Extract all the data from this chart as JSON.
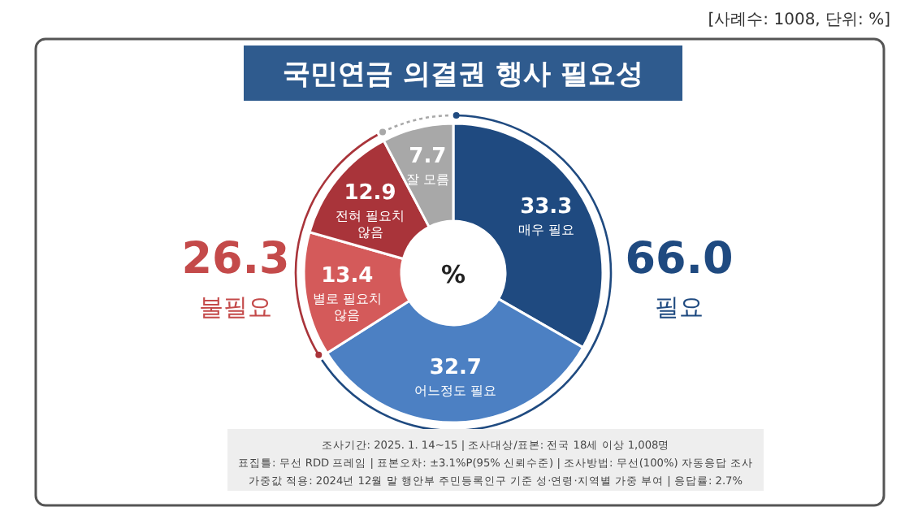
{
  "chart_data": {
    "type": "donut",
    "title": "국민연금 의결권 행사 필요성",
    "categories": [
      "매우 필요",
      "어느정도 필요",
      "별로 필요치 않음",
      "전혀 필요치 않음",
      "잘 모름"
    ],
    "values": [
      33.3,
      32.7,
      13.4,
      12.9,
      7.7
    ],
    "colors": [
      "#1f4a80",
      "#4c80c3",
      "#d45a5a",
      "#a9343a",
      "#a8a8a8"
    ],
    "data_labels": true,
    "annotations": [
      "[사례수: 1008, 단위: %]",
      "%",
      "26.3",
      "불필요",
      "66.0",
      "필요",
      "조사기간: 2025. 1. 14~15 | 조사대상/표본: 전국 18세 이상 1,008명",
      "표집틀: 무선 RDD 프레임 | 표본오차: ±3.1%P(95% 신뢰수준) | 조사방법: 무선(100%) 자동응답 조사",
      "가중값 적용: 2024년 12월 말 행안부 주민등록인구 기준 성·연령·지역별 가중 부여 | 응답률: 2.7%"
    ]
  }
}
